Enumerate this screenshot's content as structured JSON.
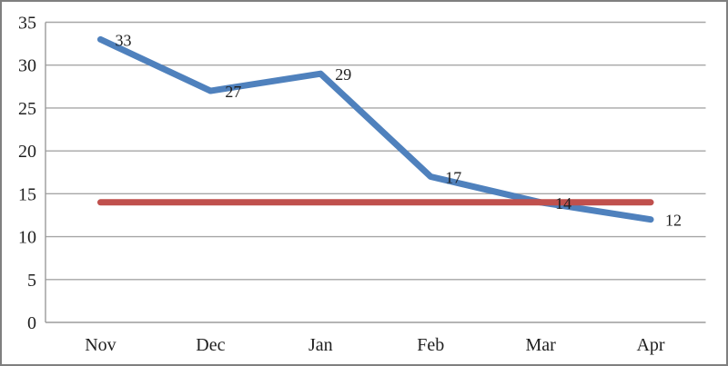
{
  "chart_data": {
    "type": "line",
    "title": "",
    "xlabel": "",
    "ylabel": "",
    "categories": [
      "Nov",
      "Dec",
      "Jan",
      "Feb",
      "Mar",
      "Apr"
    ],
    "series": [
      {
        "name": "series-1",
        "values": [
          33,
          27,
          29,
          17,
          14,
          12
        ],
        "color": "#4F81BD",
        "show_labels": true,
        "labels": [
          "33",
          "27",
          "29",
          "17",
          "14",
          "12"
        ]
      },
      {
        "name": "series-2",
        "values": [
          14,
          14,
          14,
          14,
          14,
          14
        ],
        "color": "#C0504D",
        "show_labels": false,
        "labels": []
      }
    ],
    "ylim": [
      0,
      35
    ],
    "y_ticks": [
      0,
      5,
      10,
      15,
      20,
      25,
      30,
      35
    ],
    "grid": true,
    "legend": false,
    "colors": {
      "gridline": "#A6A6A6",
      "axis": "#9B9B9B",
      "text": "#1F1F1F",
      "frame": "#7F7F7F",
      "background": "#FFFFFF"
    }
  }
}
